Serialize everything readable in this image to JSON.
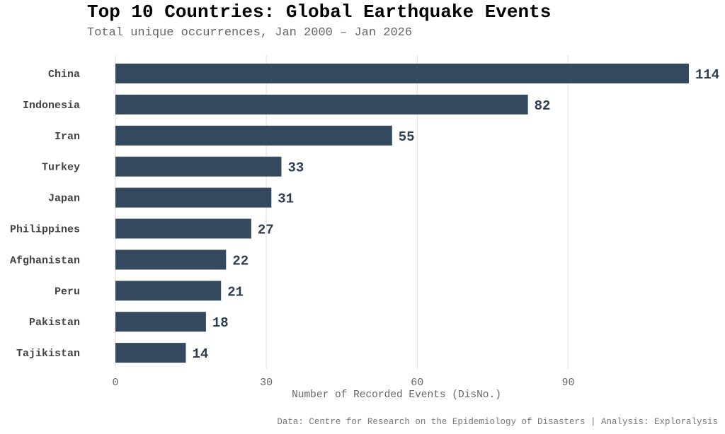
{
  "chart_data": {
    "type": "bar",
    "orientation": "horizontal",
    "title": "Top 10 Countries: Global Earthquake Events",
    "subtitle": "Total unique occurrences, Jan 2000 – Jan 2026",
    "xlabel": "Number of Recorded Events (DisNo.)",
    "ylabel": "",
    "categories": [
      "China",
      "Indonesia",
      "Iran",
      "Turkey",
      "Japan",
      "Philippines",
      "Afghanistan",
      "Peru",
      "Pakistan",
      "Tajikistan"
    ],
    "values": [
      114,
      82,
      55,
      33,
      31,
      27,
      22,
      21,
      18,
      14
    ],
    "xlim": [
      0,
      114
    ],
    "xticks": [
      0,
      30,
      60,
      90
    ],
    "grid": "vertical",
    "data_labels": true,
    "bar_color": "#34495e",
    "label_color": "#2c3e50",
    "caption": "Data: Centre for Research on the Epidemiology of Disasters | Analysis: Exploralysis"
  }
}
